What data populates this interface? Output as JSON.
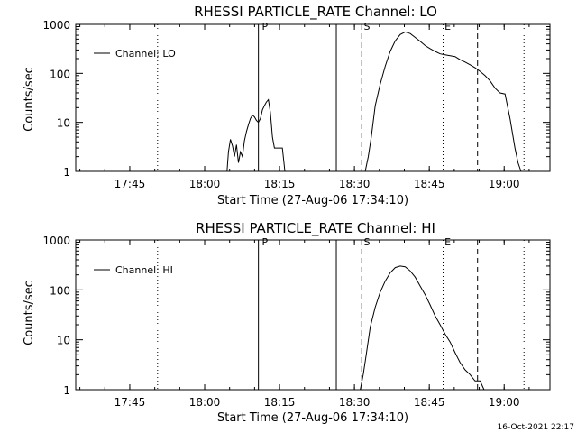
{
  "footer": "16-Oct-2021 22:17",
  "chart_data": [
    {
      "type": "line",
      "title": "RHESSI PARTICLE_RATE Channel: LO",
      "xlabel": "Start Time (27-Aug-06 17:34:10)",
      "ylabel": "Counts/sec",
      "y_scale": "log",
      "ylim": [
        1,
        1000
      ],
      "x_unit": "minutes since 17:34:10",
      "xlim": [
        0,
        95
      ],
      "x_tick_labels": [
        "17:45",
        "18:00",
        "18:15",
        "18:30",
        "18:45",
        "19:00"
      ],
      "y_tick_labels": [
        "1",
        "10",
        "100",
        "1000"
      ],
      "legend": "Channel: LO",
      "legend_position": "top-left",
      "markers": [
        "P",
        "S",
        "E"
      ],
      "series": [
        {
          "name": "Channel: LO",
          "segments": [
            {
              "x": [
                30.3,
                30.6,
                31.0,
                31.4,
                31.8,
                32.2,
                32.6,
                33.0,
                33.4,
                33.8,
                34.2,
                34.6,
                35.0,
                35.4,
                35.8,
                36.2,
                36.6,
                37.0,
                37.4,
                37.8,
                38.2,
                38.6,
                39.0,
                39.4,
                39.8,
                40.2,
                40.6,
                41.0,
                41.4,
                41.9
              ],
              "y": [
                1.0,
                2.5,
                4.5,
                3.3,
                2.0,
                3.5,
                1.5,
                2.5,
                2.0,
                4.2,
                6.5,
                9.0,
                12,
                14,
                13,
                11,
                10,
                12,
                18,
                22,
                26,
                29,
                16,
                5.0,
                3.0,
                3.0,
                3.0,
                3.0,
                3.0,
                1.0
              ]
            },
            {
              "x": [
                58.0,
                58.6,
                59.2,
                60.0,
                61.0,
                62.0,
                63.0,
                64.0,
                65.0,
                66.0,
                67.0,
                68.0,
                69.0,
                70.0,
                71.0,
                72.0,
                73.0,
                74.0,
                75.0,
                76.0,
                77.0,
                78.0,
                79.0,
                80.0,
                81.0,
                82.0,
                83.0,
                84.0,
                85.0,
                86.0,
                87.0,
                88.0,
                88.6,
                89.2
              ],
              "y": [
                1.0,
                2.0,
                5.0,
                22,
                60,
                140,
                280,
                460,
                620,
                700,
                650,
                540,
                450,
                370,
                320,
                280,
                250,
                240,
                230,
                220,
                190,
                170,
                150,
                130,
                110,
                90,
                70,
                50,
                40,
                38,
                12,
                3.0,
                1.5,
                1.0
              ]
            }
          ]
        }
      ]
    },
    {
      "type": "line",
      "title": "RHESSI PARTICLE_RATE Channel: HI",
      "xlabel": "Start Time (27-Aug-06 17:34:10)",
      "ylabel": "Counts/sec",
      "y_scale": "log",
      "ylim": [
        1,
        1000
      ],
      "x_unit": "minutes since 17:34:10",
      "xlim": [
        0,
        95
      ],
      "x_tick_labels": [
        "17:45",
        "18:00",
        "18:15",
        "18:30",
        "18:45",
        "19:00"
      ],
      "y_tick_labels": [
        "1",
        "10",
        "100",
        "1000"
      ],
      "legend": "Channel: HI",
      "legend_position": "top-left",
      "markers": [
        "P",
        "S",
        "E"
      ],
      "series": [
        {
          "name": "Channel: HI",
          "segments": [
            {
              "x": [
                57.0,
                57.6,
                58.2,
                59.0,
                60.0,
                61.0,
                62.0,
                63.0,
                64.0,
                65.0,
                66.0,
                67.0,
                68.0,
                69.0,
                70.0,
                71.0,
                72.0,
                73.0,
                74.0,
                75.0,
                76.0,
                77.0,
                78.0,
                79.0,
                80.0,
                81.0,
                81.8
              ],
              "y": [
                1.0,
                2.0,
                5.0,
                18,
                45,
                90,
                150,
                220,
                280,
                300,
                290,
                240,
                180,
                120,
                80,
                50,
                30,
                20,
                13,
                9,
                5.5,
                3.5,
                2.5,
                2.0,
                1.5,
                1.5,
                1.0
              ]
            }
          ]
        }
      ]
    }
  ]
}
